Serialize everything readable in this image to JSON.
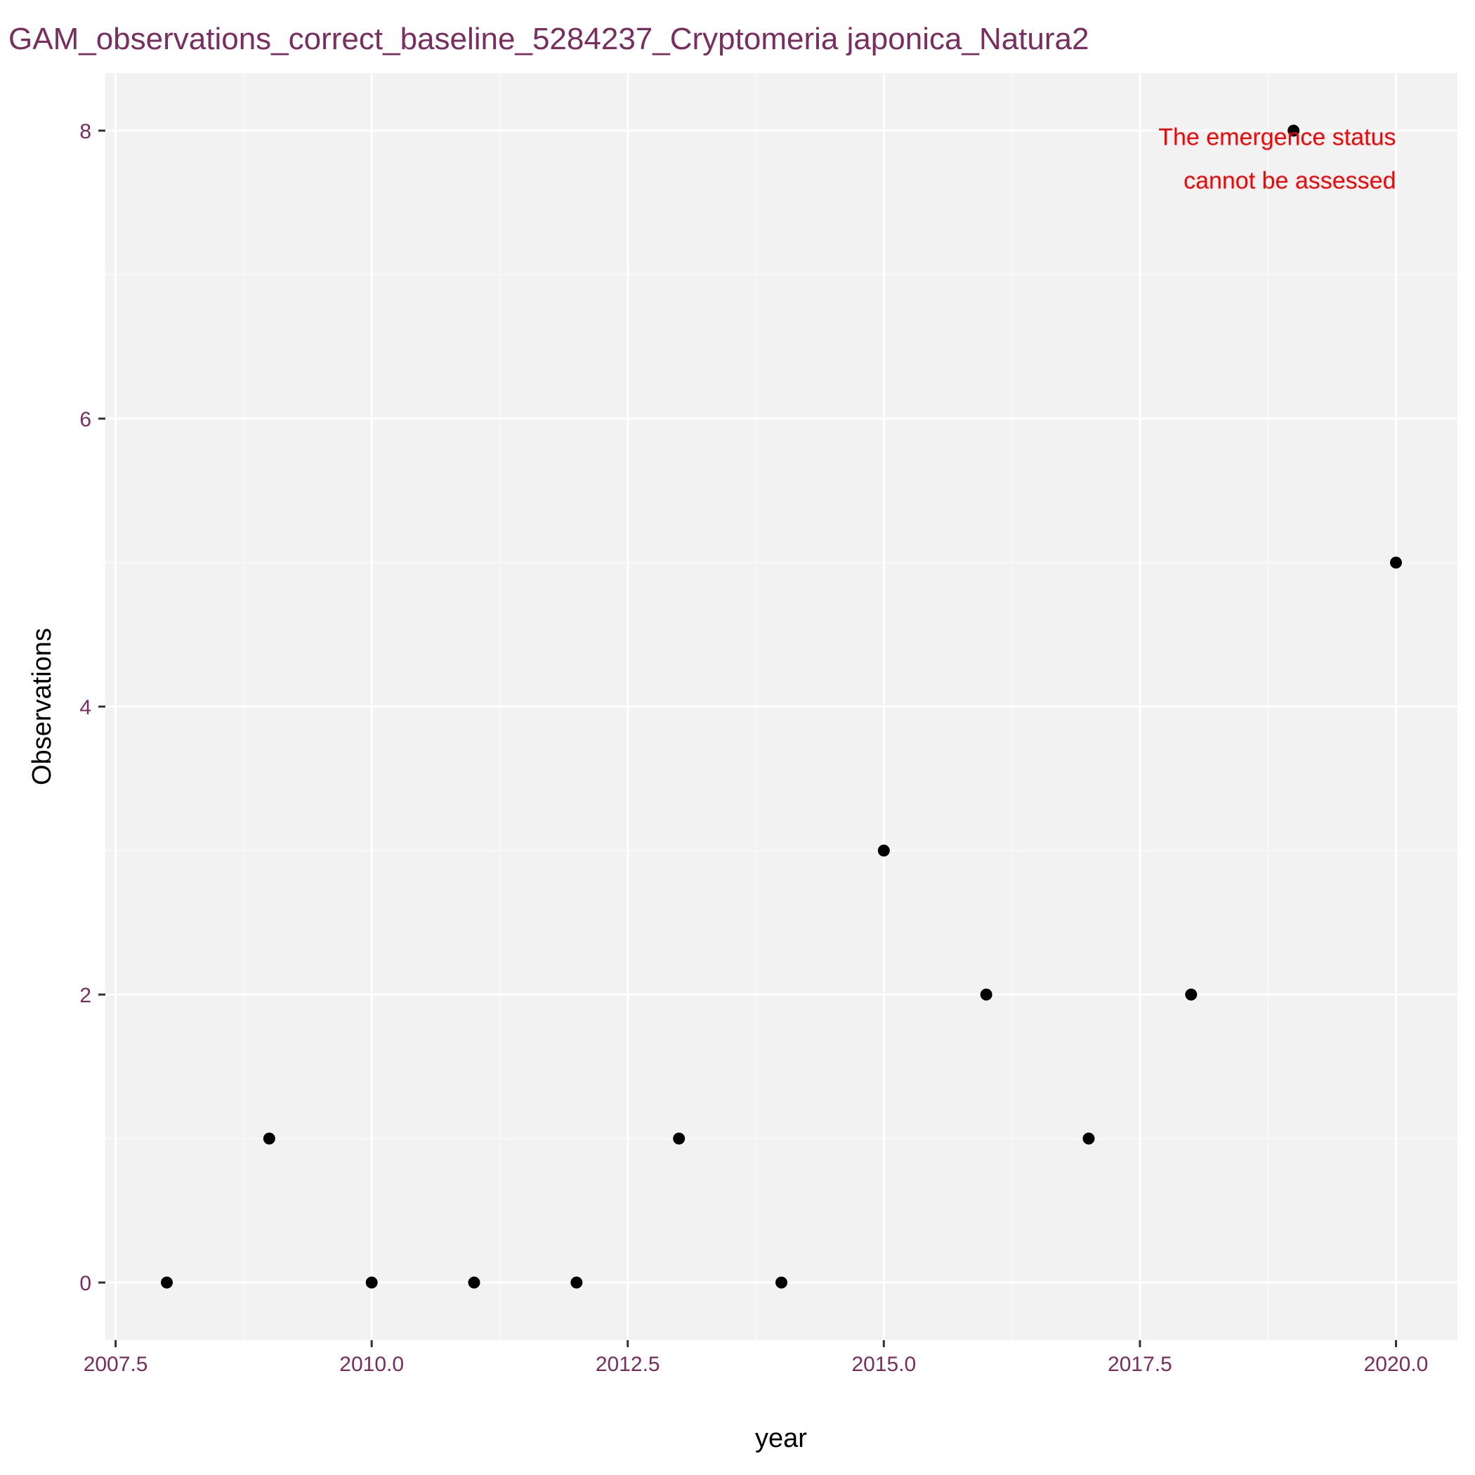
{
  "chart_data": {
    "type": "scatter",
    "title": "GAM_observations_correct_baseline_5284237_Cryptomeria japonica_Natura2",
    "xlabel": "year",
    "ylabel": "Observations",
    "xlim": [
      2007.4,
      2020.6
    ],
    "ylim": [
      -0.4,
      8.4
    ],
    "x_ticks": [
      2007.5,
      2010.0,
      2012.5,
      2015.0,
      2017.5,
      2020.0
    ],
    "x_tick_labels": [
      "2007.5",
      "2010.0",
      "2012.5",
      "2015.0",
      "2017.5",
      "2020.0"
    ],
    "y_ticks": [
      0,
      2,
      4,
      6,
      8
    ],
    "y_tick_labels": [
      "0",
      "2",
      "4",
      "6",
      "8"
    ],
    "grid": true,
    "x": [
      2008,
      2009,
      2010,
      2011,
      2012,
      2013,
      2014,
      2015,
      2016,
      2017,
      2018,
      2019,
      2020
    ],
    "y": [
      0,
      1,
      0,
      0,
      0,
      1,
      0,
      3,
      2,
      1,
      2,
      8,
      5
    ],
    "annotation": {
      "lines": [
        "The emergence status",
        "cannot be assessed"
      ],
      "x": 2020,
      "y": 7.9
    }
  },
  "colors": {
    "panel_background": "#f2f2f2",
    "grid_major": "#ffffff",
    "grid_minor": "#fafafa",
    "point": "#000000",
    "title": "#7b2d5f",
    "tick_label": "#7b2d5f",
    "annotation": "#ff0000"
  }
}
